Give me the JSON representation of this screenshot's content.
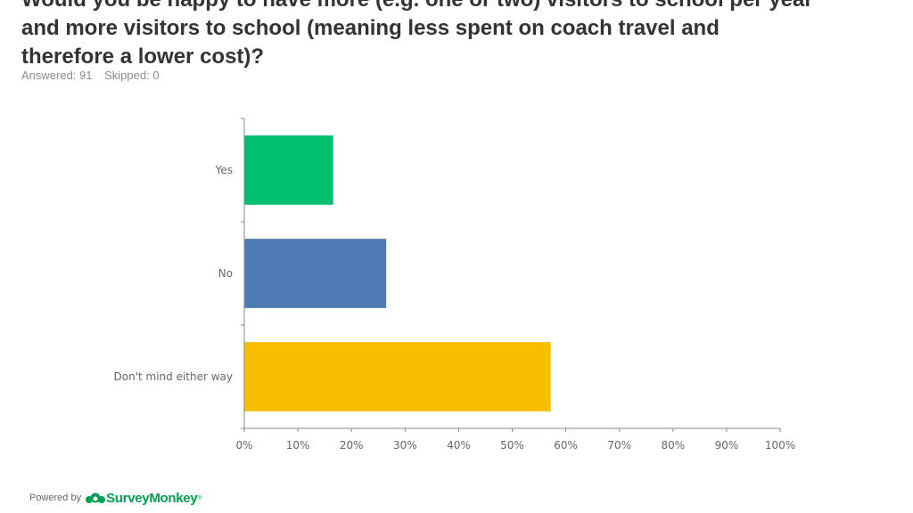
{
  "header": {
    "title_lines": [
      "Would you be happy to have more (e.g. one or two) visitors to school per year",
      "and more visitors to school (meaning less spent on coach travel and",
      "therefore a lower cost)?"
    ],
    "answered": "Answered: 91",
    "skipped": "Skipped: 0"
  },
  "chart_data": {
    "type": "bar",
    "orientation": "horizontal",
    "categories": [
      "Yes",
      "No",
      "Don't mind either way"
    ],
    "values": [
      16.5,
      26.4,
      57.1
    ],
    "colors": [
      "#00bf6f",
      "#507cb6",
      "#f9be00"
    ],
    "xlim": [
      0,
      100
    ],
    "xticks": [
      "0%",
      "10%",
      "20%",
      "30%",
      "40%",
      "50%",
      "60%",
      "70%",
      "80%",
      "90%",
      "100%"
    ],
    "grid": false,
    "title": "",
    "xlabel": "",
    "ylabel": ""
  },
  "footer": {
    "powered_by": "Powered by",
    "brand": "SurveyMonkey",
    "brand_mark": "®",
    "logo_icon": "surveymonkey-logo-icon"
  }
}
